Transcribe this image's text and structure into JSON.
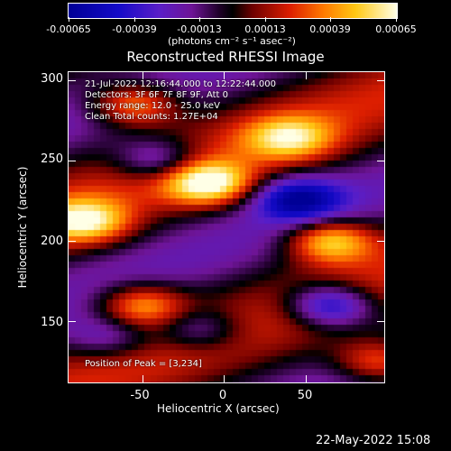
{
  "colorbar": {
    "tick_labels": [
      "-0.00065",
      "-0.00039",
      "-0.00013",
      "0.00013",
      "0.00039",
      "0.00065"
    ],
    "units_label": "(photons cm⁻² s⁻¹ asec⁻²)",
    "range": [
      -0.00065,
      0.00065
    ]
  },
  "plot": {
    "title": "Reconstructed RHESSI Image",
    "xlabel": "Heliocentric X (arcsec)",
    "ylabel": "Heliocentric Y (arcsec)",
    "xticks": [
      "-50",
      "0",
      "50"
    ],
    "xtick_values": [
      -50,
      0,
      50
    ],
    "yticks": [
      "300",
      "250",
      "200",
      "150"
    ],
    "ytick_values": [
      300,
      250,
      200,
      150
    ],
    "xlim": [
      -95,
      98
    ],
    "ylim": [
      112,
      305
    ]
  },
  "overlay": {
    "time_range": "21-Jul-2022 12:16:44.000 to 12:22:44.000",
    "detectors": "Detectors: 3F 6F 7F 8F 9F, Att 0",
    "energy": "Energy range: 12.0 - 25.0 keV",
    "clean": "Clean     Total counts: 1.27E+04",
    "peak": "Position of Peak = [3,234]"
  },
  "footer": {
    "timestamp": "22-May-2022 15:08"
  },
  "chart_data": {
    "type": "heatmap",
    "title": "Reconstructed RHESSI Image",
    "xlabel": "Heliocentric X (arcsec)",
    "ylabel": "Heliocentric Y (arcsec)",
    "xlim": [
      -95,
      98
    ],
    "ylim": [
      112,
      305
    ],
    "colormap": "hot-on-blue",
    "value_range": [
      -0.00065,
      0.00065
    ],
    "peak_position": [
      3,
      234
    ],
    "bright_features": [
      {
        "x": -10,
        "y": 236,
        "relative": 1.0
      },
      {
        "x": 65,
        "y": 200,
        "relative": 0.9
      },
      {
        "x": -85,
        "y": 212,
        "relative": 0.85
      },
      {
        "x": -55,
        "y": 285,
        "relative": 0.8
      },
      {
        "x": -50,
        "y": 160,
        "relative": 0.75
      },
      {
        "x": 40,
        "y": 264,
        "relative": 0.7
      },
      {
        "x": 95,
        "y": 125,
        "relative": 0.7
      }
    ],
    "dark_features": [
      {
        "x": 45,
        "y": 226,
        "relative": -0.8
      },
      {
        "x": 65,
        "y": 160,
        "relative": -0.9
      },
      {
        "x": -40,
        "y": 250,
        "relative": -0.6
      },
      {
        "x": -15,
        "y": 145,
        "relative": -0.5
      },
      {
        "x": -70,
        "y": 140,
        "relative": -0.4
      }
    ]
  }
}
